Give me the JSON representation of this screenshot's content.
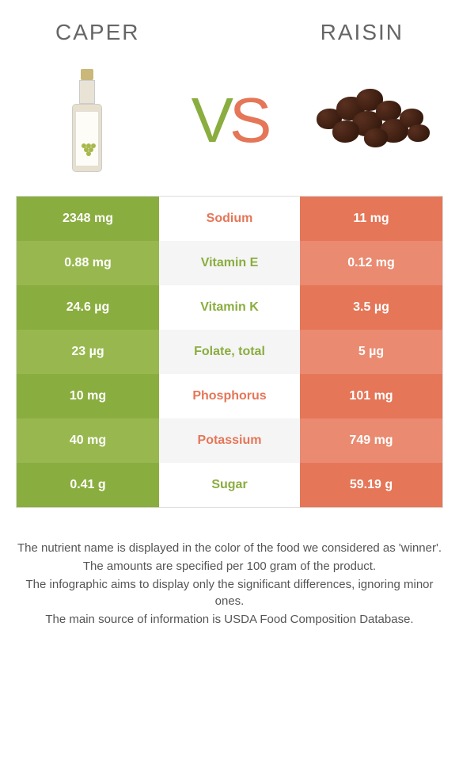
{
  "header": {
    "left_title": "CAPER",
    "right_title": "RAISIN"
  },
  "vs": {
    "v": "V",
    "s": "S"
  },
  "colors": {
    "left": "#8aad3f",
    "right": "#e57658",
    "left_alt": "#98b84f",
    "right_alt": "#ea8a70"
  },
  "rows": [
    {
      "left": "2348 mg",
      "label": "Sodium",
      "right": "11 mg",
      "winner": "right"
    },
    {
      "left": "0.88 mg",
      "label": "Vitamin E",
      "right": "0.12 mg",
      "winner": "left"
    },
    {
      "left": "24.6 µg",
      "label": "Vitamin K",
      "right": "3.5 µg",
      "winner": "left"
    },
    {
      "left": "23 µg",
      "label": "Folate, total",
      "right": "5 µg",
      "winner": "left"
    },
    {
      "left": "10 mg",
      "label": "Phosphorus",
      "right": "101 mg",
      "winner": "right"
    },
    {
      "left": "40 mg",
      "label": "Potassium",
      "right": "749 mg",
      "winner": "right"
    },
    {
      "left": "0.41 g",
      "label": "Sugar",
      "right": "59.19 g",
      "winner": "left"
    }
  ],
  "footnotes": [
    "The nutrient name is displayed in the color of the food we considered as 'winner'.",
    "The amounts are specified per 100 gram of the product.",
    "The infographic aims to display only the significant differences, ignoring minor ones.",
    "The main source of information is USDA Food Composition Database."
  ]
}
